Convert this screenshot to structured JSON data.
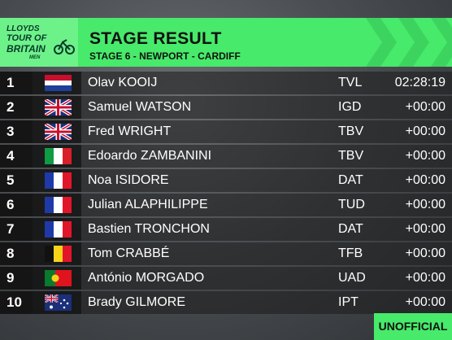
{
  "logo": {
    "line1": "LLOYDS",
    "line2": "TOUR OF",
    "line3": "BRITAIN",
    "line4": "MEN"
  },
  "header": {
    "title": "STAGE RESULT",
    "subtitle": "STAGE 6 - NEWPORT - CARDIFF"
  },
  "table": {
    "rows": [
      [
        1,
        "Olav KOOIJ",
        "TVL",
        "02:28:19"
      ],
      [
        2,
        "Samuel WATSON",
        "IGD",
        "+00:00"
      ],
      [
        3,
        "Fred WRIGHT",
        "TBV",
        "+00:00"
      ],
      [
        4,
        "Edoardo ZAMBANINI",
        "TBV",
        "+00:00"
      ],
      [
        5,
        "Noa ISIDORE",
        "DAT",
        "+00:00"
      ],
      [
        6,
        "Julian ALAPHILIPPE",
        "TUD",
        "+00:00"
      ],
      [
        7,
        "Bastien TRONCHON",
        "DAT",
        "+00:00"
      ],
      [
        8,
        "Tom CRABBÉ",
        "TFB",
        "+00:00"
      ],
      [
        9,
        "António MORGADO",
        "UAD",
        "+00:00"
      ],
      [
        10,
        "Brady GILMORE",
        "IPT",
        "+00:00"
      ]
    ]
  },
  "footer": {
    "status": "UNOFFICIAL"
  }
}
